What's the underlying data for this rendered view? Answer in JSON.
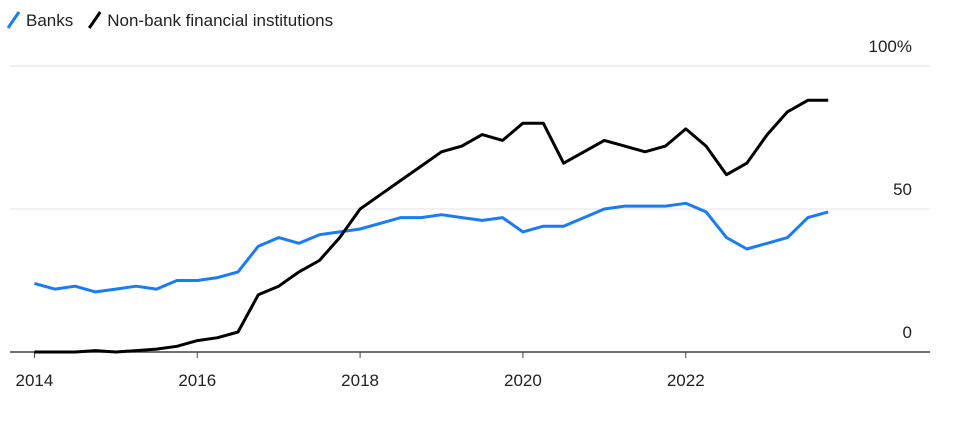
{
  "chart_data": {
    "type": "line",
    "x": [
      2014,
      2014.25,
      2014.5,
      2014.75,
      2015,
      2015.25,
      2015.5,
      2015.75,
      2016,
      2016.25,
      2016.5,
      2016.75,
      2017,
      2017.25,
      2017.5,
      2017.75,
      2018,
      2018.25,
      2018.5,
      2018.75,
      2019,
      2019.25,
      2019.5,
      2019.75,
      2020,
      2020.25,
      2020.5,
      2020.75,
      2021,
      2021.25,
      2021.5,
      2021.75,
      2022,
      2022.25,
      2022.5,
      2022.75,
      2023,
      2023.25,
      2023.5,
      2023.75
    ],
    "series": [
      {
        "name": "Banks",
        "color": "#1a7cf5",
        "values": [
          24,
          22,
          23,
          21,
          22,
          23,
          22,
          25,
          25,
          26,
          28,
          37,
          40,
          38,
          41,
          42,
          43,
          45,
          47,
          47,
          48,
          47,
          46,
          47,
          42,
          44,
          44,
          47,
          50,
          51,
          51,
          51,
          52,
          49,
          40,
          36,
          38,
          40,
          47,
          49
        ]
      },
      {
        "name": "Non-bank financial institutions",
        "color": "#000000",
        "values": [
          0,
          0,
          0,
          0.5,
          0,
          0.5,
          1,
          2,
          4,
          5,
          7,
          20,
          23,
          28,
          32,
          40,
          50,
          55,
          60,
          65,
          70,
          72,
          76,
          74,
          80,
          80,
          66,
          70,
          74,
          72,
          70,
          72,
          78,
          72,
          62,
          66,
          76,
          84,
          88,
          88
        ]
      }
    ],
    "xlim": [
      2013.7,
      2025.0
    ],
    "xticks": [
      2014,
      2016,
      2018,
      2020,
      2022
    ],
    "ylim": [
      0,
      100
    ],
    "yticks": [
      0,
      50,
      {
        "value": 100,
        "label": "100%"
      }
    ],
    "grid": true,
    "legend": "top-left"
  }
}
